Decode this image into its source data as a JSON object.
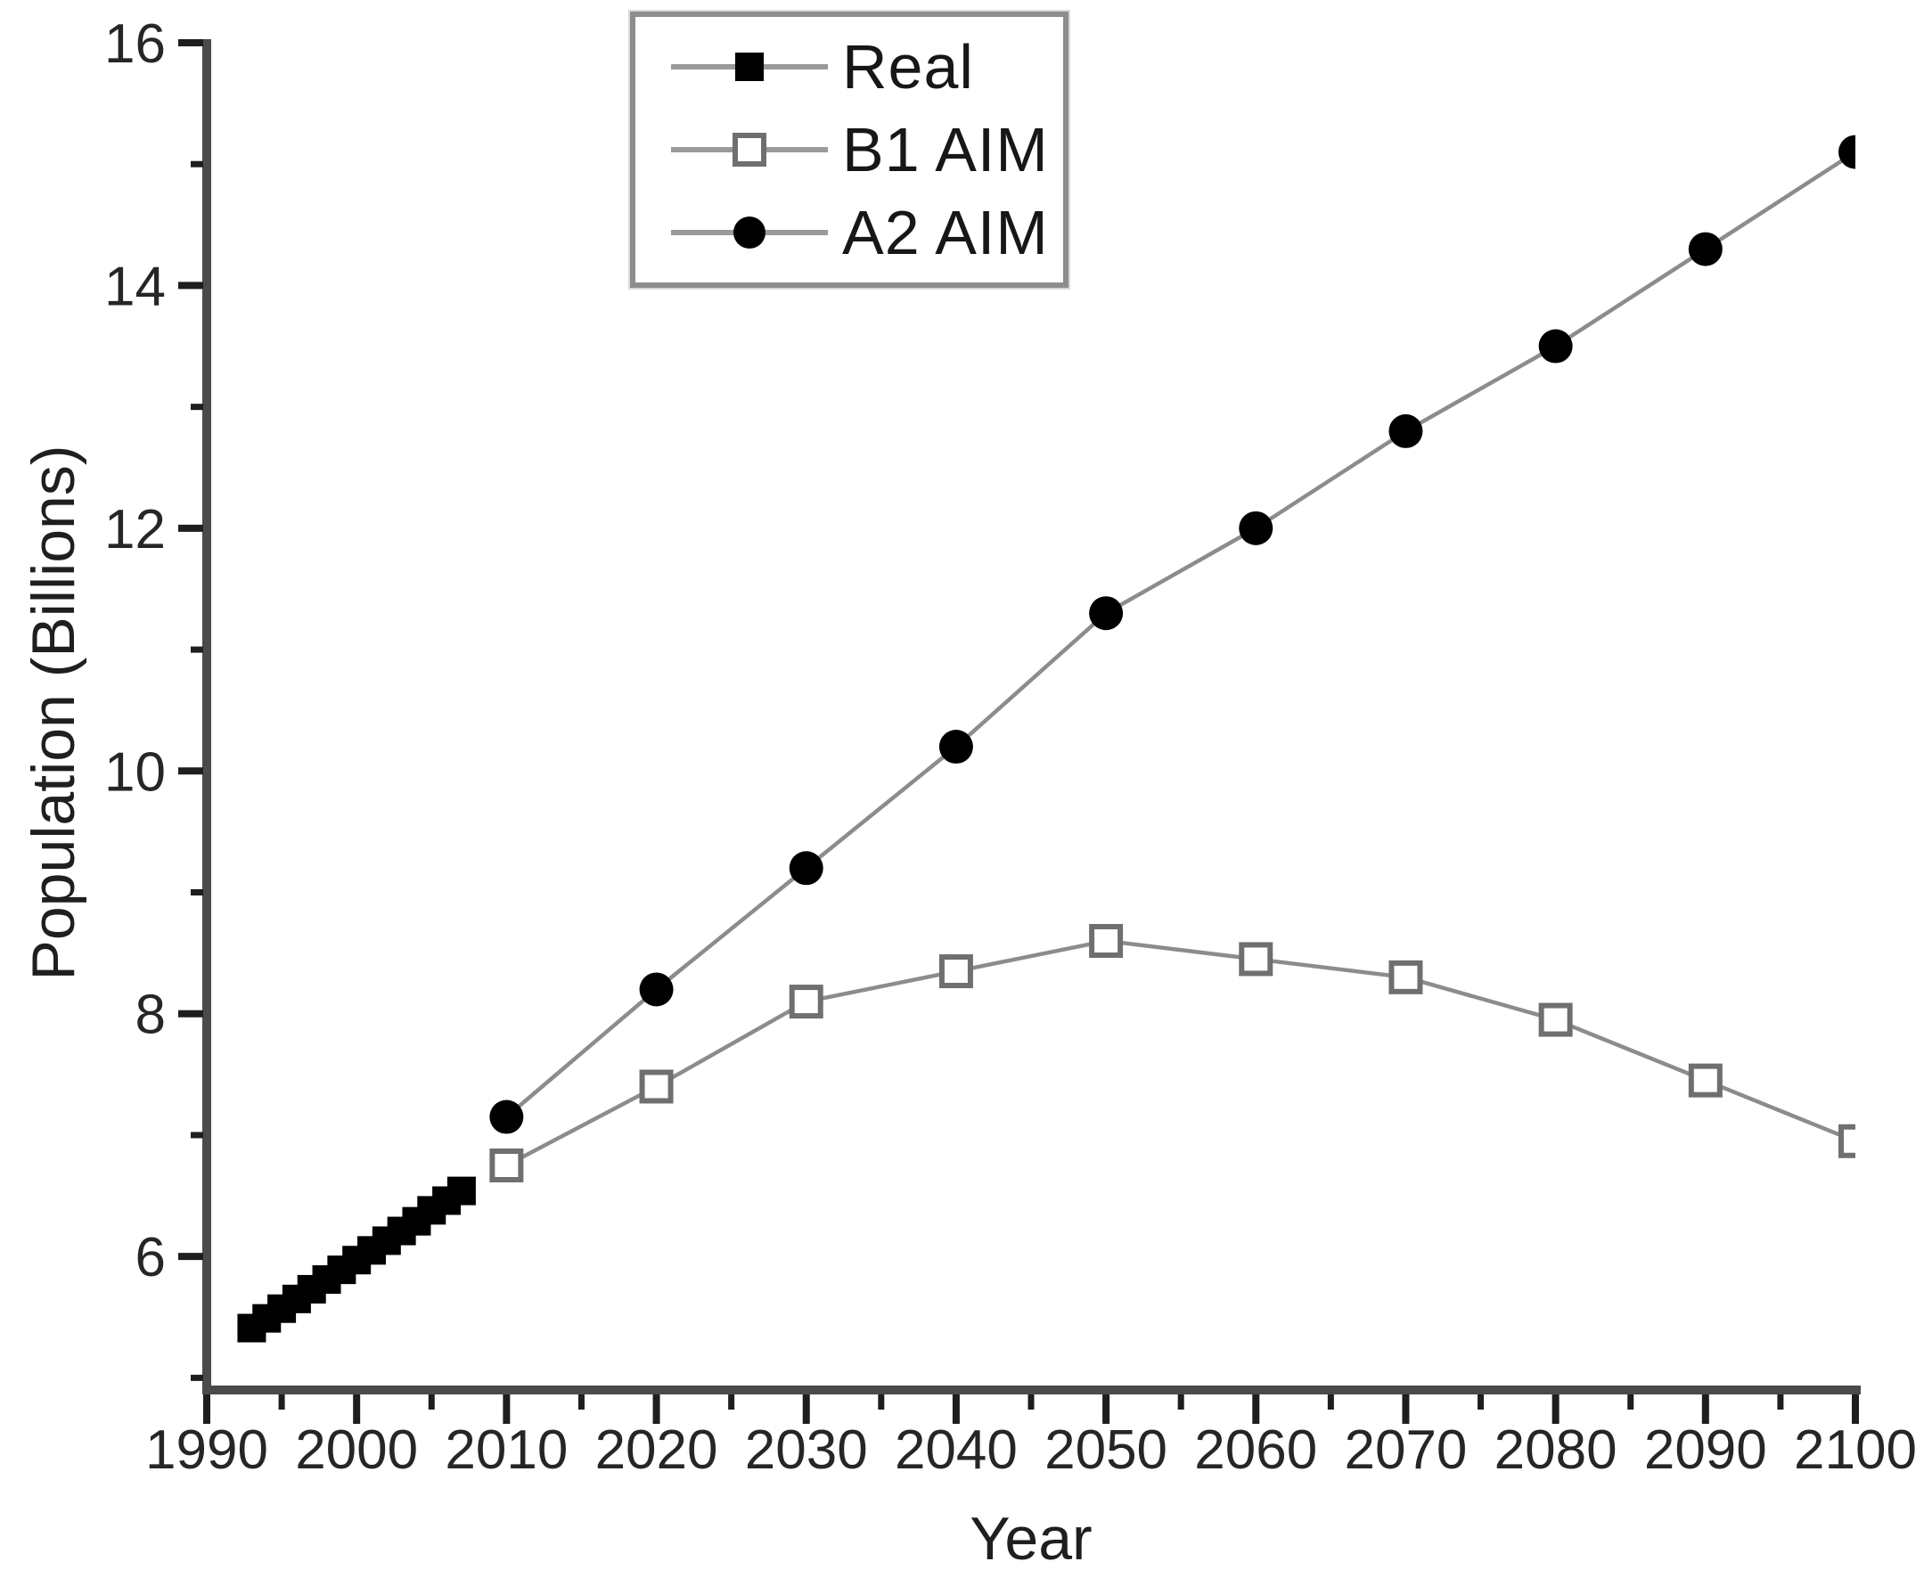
{
  "chart_data": {
    "type": "line",
    "title": "",
    "xlabel": "Year",
    "ylabel": "Population (Billions)",
    "x_axis": {
      "min": 1990,
      "max": 2100,
      "major_ticks": [
        1990,
        2000,
        2010,
        2020,
        2030,
        2040,
        2050,
        2060,
        2070,
        2080,
        2090,
        2100
      ],
      "tick_labels": [
        "1990",
        "2000",
        "2010",
        "2020",
        "2030",
        "2040",
        "2050",
        "2060",
        "2070",
        "2080",
        "2090",
        "2100"
      ],
      "minor_ticks": [
        1995,
        2005,
        2015,
        2025,
        2035,
        2045,
        2055,
        2065,
        2075,
        2085,
        2095
      ]
    },
    "y_axis": {
      "min": 4.9,
      "max": 16,
      "major_ticks": [
        6,
        8,
        10,
        12,
        14,
        16
      ],
      "tick_labels": [
        "6",
        "8",
        "10",
        "12",
        "14",
        "16"
      ],
      "minor_ticks": [
        5,
        7,
        9,
        11,
        13,
        15
      ]
    },
    "grid": false,
    "legend": {
      "position": "top-center",
      "border": true,
      "items": [
        {
          "label": "Real"
        },
        {
          "label": "B1 AIM"
        },
        {
          "label": "A2 AIM"
        }
      ]
    },
    "series": [
      {
        "name": "Real",
        "marker": "filled-square",
        "marker_color": "#000000",
        "line_color": "#1c1c1c",
        "x": [
          1993,
          1994,
          1995,
          1996,
          1997,
          1998,
          1999,
          2000,
          2001,
          2002,
          2003,
          2004,
          2005,
          2006,
          2007
        ],
        "y": [
          5.41,
          5.49,
          5.57,
          5.65,
          5.73,
          5.81,
          5.89,
          5.97,
          6.05,
          6.13,
          6.21,
          6.29,
          6.38,
          6.46,
          6.54
        ]
      },
      {
        "name": "B1 AIM",
        "marker": "open-square",
        "marker_color": "#ffffff",
        "marker_stroke": "#6f6f6f",
        "line_color": "#8c8c8c",
        "x": [
          2010,
          2020,
          2030,
          2040,
          2050,
          2060,
          2070,
          2080,
          2090,
          2100
        ],
        "y": [
          6.75,
          7.4,
          8.1,
          8.35,
          8.6,
          8.45,
          8.3,
          7.95,
          7.45,
          6.95
        ]
      },
      {
        "name": "A2 AIM",
        "marker": "filled-circle",
        "marker_color": "#000000",
        "line_color": "#8c8c8c",
        "x": [
          2010,
          2020,
          2030,
          2040,
          2050,
          2060,
          2070,
          2080,
          2090,
          2100
        ],
        "y": [
          7.15,
          8.2,
          9.2,
          10.2,
          11.3,
          12.0,
          12.8,
          13.5,
          14.3,
          15.1
        ]
      }
    ]
  },
  "colors": {
    "background": "#ffffff",
    "axis_line": "#4a4a4a",
    "tick": "#1e1e1e",
    "tick_label": "#262626",
    "text": "#1f1f1f",
    "series_line": "#8c8c8c",
    "marker_black": "#000000",
    "legend_border": "#8d8d8d"
  }
}
